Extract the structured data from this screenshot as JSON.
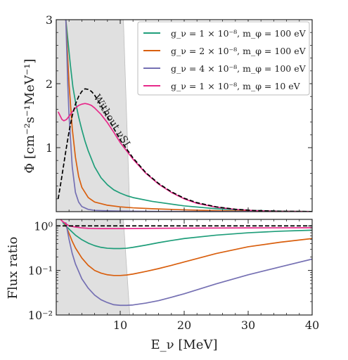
{
  "chart_data": [
    {
      "type": "line",
      "title": "",
      "xlabel": "",
      "ylabel": "Φ [cm⁻²s⁻¹MeV⁻¹]",
      "xlim": [
        0,
        40
      ],
      "ylim": [
        0,
        3
      ],
      "y_ticks": [
        1,
        2,
        3
      ],
      "y_tick_labels": [
        "1",
        "2",
        "3"
      ],
      "shaded_region": {
        "x_top": [
          0,
          10.5
        ],
        "x_bottom": [
          0,
          11.5
        ],
        "color": "#e0e0e0"
      },
      "annotation": "Without νSI",
      "legend_position": "top-right",
      "series": [
        {
          "name": "g_ν = 1 × 10⁻⁸, m_φ = 100 eV",
          "color": "#1f9e7a",
          "style": "solid",
          "x": [
            1.5,
            1.8,
            2.2,
            2.6,
            3.0,
            3.5,
            4.0,
            4.5,
            5.0,
            6.0,
            7.0,
            8.0,
            9.0,
            10.0,
            11.0,
            12.0,
            15.0,
            20.0,
            25.0,
            30.0,
            35.0,
            40.0
          ],
          "y": [
            3.0,
            2.7,
            2.3,
            1.95,
            1.72,
            1.48,
            1.28,
            1.1,
            0.95,
            0.7,
            0.53,
            0.42,
            0.34,
            0.29,
            0.25,
            0.22,
            0.16,
            0.09,
            0.045,
            0.02,
            0.008,
            0.002
          ]
        },
        {
          "name": "g_ν = 2 × 10⁻⁸, m_φ = 100 eV",
          "color": "#d95f0e",
          "style": "solid",
          "x": [
            1.5,
            2.0,
            2.5,
            3.0,
            3.5,
            4.0,
            5.0,
            6.0,
            8.0,
            10.0,
            12.0,
            15.0,
            20.0,
            25.0,
            30.0,
            35.0,
            40.0
          ],
          "y": [
            3.0,
            2.0,
            1.3,
            0.85,
            0.55,
            0.38,
            0.22,
            0.15,
            0.1,
            0.075,
            0.06,
            0.045,
            0.028,
            0.015,
            0.007,
            0.003,
            0.001
          ]
        },
        {
          "name": "g_ν = 4 × 10⁻⁸, m_φ = 100 eV",
          "color": "#7570b3",
          "style": "solid",
          "x": [
            1.5,
            1.8,
            2.0,
            2.5,
            3.0,
            3.5,
            4.0,
            5.0,
            6.0,
            8.0,
            10.0,
            15.0,
            20.0,
            30.0,
            40.0
          ],
          "y": [
            3.0,
            2.0,
            1.5,
            0.7,
            0.3,
            0.15,
            0.08,
            0.035,
            0.02,
            0.012,
            0.008,
            0.005,
            0.003,
            0.001,
            0.0
          ]
        },
        {
          "name": "g_ν = 1 × 10⁻⁸, m_φ = 10 eV",
          "color": "#e7298a",
          "style": "solid",
          "x": [
            0.3,
            0.6,
            0.9,
            1.2,
            1.6,
            2.0,
            2.5,
            3.0,
            3.5,
            4.0,
            4.5,
            5.0,
            5.5,
            6.0,
            7.0,
            8.0,
            9.0,
            10.0,
            12.0,
            14.0,
            16.0,
            18.0,
            20.0,
            22.0,
            25.0,
            28.0,
            31.0,
            35.0,
            40.0
          ],
          "y": [
            1.56,
            1.5,
            1.44,
            1.42,
            1.44,
            1.49,
            1.56,
            1.62,
            1.66,
            1.68,
            1.69,
            1.68,
            1.66,
            1.62,
            1.52,
            1.39,
            1.24,
            1.08,
            0.82,
            0.6,
            0.43,
            0.3,
            0.2,
            0.13,
            0.07,
            0.035,
            0.016,
            0.005,
            0.001
          ]
        },
        {
          "name": "Without νSI",
          "color": "#000000",
          "style": "dashed",
          "x": [
            0.3,
            0.8,
            1.5,
            2.0,
            2.5,
            3.0,
            3.5,
            4.0,
            4.5,
            5.0,
            5.5,
            6.0,
            7.0,
            8.0,
            9.0,
            10.0,
            12.0,
            14.0,
            16.0,
            18.0,
            20.0,
            22.0,
            25.0,
            28.0,
            31.0,
            35.0,
            40.0
          ],
          "y": [
            0.2,
            0.5,
            0.95,
            1.25,
            1.5,
            1.68,
            1.8,
            1.88,
            1.92,
            1.91,
            1.88,
            1.82,
            1.66,
            1.48,
            1.3,
            1.12,
            0.84,
            0.61,
            0.44,
            0.31,
            0.21,
            0.14,
            0.075,
            0.037,
            0.017,
            0.006,
            0.001
          ]
        }
      ]
    },
    {
      "type": "line",
      "title": "",
      "xlabel": "E_ν [MeV]",
      "ylabel": "Flux ratio",
      "xlim": [
        0,
        40
      ],
      "ylim": [
        0.01,
        1.4
      ],
      "yscale": "log",
      "x_ticks": [
        10,
        20,
        30,
        40
      ],
      "x_tick_labels": [
        "10",
        "20",
        "30",
        "40"
      ],
      "y_ticks": [
        0.01,
        0.1,
        1
      ],
      "y_tick_labels": [
        "10⁻²",
        "10⁻¹",
        "10⁰"
      ],
      "shaded_region": {
        "x_top": [
          0,
          10.5
        ],
        "x_bottom": [
          0,
          11.5
        ],
        "color": "#e0e0e0"
      },
      "series": [
        {
          "name": "g_ν = 1 × 10⁻⁸, m_φ = 100 eV",
          "color": "#1f9e7a",
          "style": "solid",
          "x": [
            1.0,
            1.5,
            2.0,
            3.0,
            4.0,
            5.0,
            6.0,
            7.0,
            8.0,
            9.0,
            10.0,
            11.0,
            12.0,
            14.0,
            16.0,
            18.0,
            20.0,
            25.0,
            30.0,
            35.0,
            40.0
          ],
          "y": [
            1.2,
            1.0,
            0.85,
            0.62,
            0.49,
            0.41,
            0.36,
            0.33,
            0.315,
            0.31,
            0.31,
            0.315,
            0.33,
            0.37,
            0.42,
            0.47,
            0.52,
            0.62,
            0.7,
            0.76,
            0.8
          ]
        },
        {
          "name": "g_ν = 2 × 10⁻⁸, m_φ = 100 eV",
          "color": "#d95f0e",
          "style": "solid",
          "x": [
            1.3,
            1.8,
            2.5,
            3.0,
            4.0,
            5.0,
            6.0,
            7.0,
            8.0,
            9.0,
            10.0,
            11.0,
            12.0,
            14.0,
            16.0,
            18.0,
            20.0,
            25.0,
            30.0,
            35.0,
            40.0
          ],
          "y": [
            1.2,
            0.8,
            0.45,
            0.32,
            0.19,
            0.13,
            0.1,
            0.087,
            0.08,
            0.077,
            0.077,
            0.079,
            0.083,
            0.095,
            0.11,
            0.13,
            0.155,
            0.24,
            0.34,
            0.43,
            0.52
          ]
        },
        {
          "name": "g_ν = 4 × 10⁻⁸, m_φ = 100 eV",
          "color": "#7570b3",
          "style": "solid",
          "x": [
            1.5,
            2.0,
            2.5,
            3.0,
            4.0,
            5.0,
            6.0,
            7.0,
            8.0,
            9.0,
            10.0,
            11.0,
            12.0,
            14.0,
            16.0,
            18.0,
            20.0,
            25.0,
            30.0,
            35.0,
            40.0
          ],
          "y": [
            1.2,
            0.5,
            0.24,
            0.14,
            0.065,
            0.04,
            0.028,
            0.022,
            0.019,
            0.017,
            0.0165,
            0.0165,
            0.0168,
            0.0185,
            0.021,
            0.025,
            0.03,
            0.05,
            0.08,
            0.12,
            0.18
          ]
        },
        {
          "name": "g_ν = 1 × 10⁻⁸, m_φ = 10 eV",
          "color": "#e7298a",
          "style": "solid",
          "x": [
            0.3,
            1.0,
            2.0,
            3.0,
            4.0,
            5.0,
            7.0,
            10.0,
            15.0,
            20.0,
            30.0,
            40.0
          ],
          "y": [
            1.6,
            1.25,
            1.0,
            0.94,
            0.9,
            0.88,
            0.87,
            0.87,
            0.88,
            0.89,
            0.9,
            0.91
          ]
        },
        {
          "name": "Without νSI",
          "color": "#000000",
          "style": "dashed",
          "x": [
            0.0,
            40.0
          ],
          "y": [
            1.0,
            1.0
          ]
        }
      ]
    }
  ]
}
